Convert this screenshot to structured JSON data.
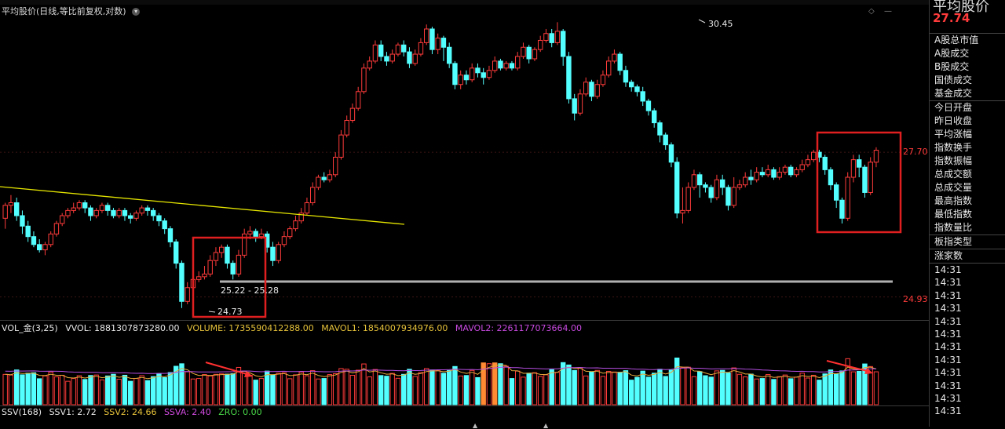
{
  "header": {
    "chart_title": "平均股价(日线,等比前复权,对数)",
    "info_icon": "chevron-down-icon"
  },
  "price_axis": {
    "label_top": "27.70",
    "label_bottom": "24.93",
    "color": "#ff3b3b"
  },
  "annotations": {
    "high": "30.45",
    "low": "24.73",
    "range": "25.22 - 25.28"
  },
  "volume_legend": {
    "name": "VOL_金(3,25)",
    "vvol": "VVOL: 1881307873280.00",
    "volume": "VOLUME: 1735590412288.00",
    "mavol1": "MAVOL1: 1854007934976.00",
    "mavol2": "MAVOL2: 2261177073664.00"
  },
  "ssv_legend": {
    "name": "SSV(168)",
    "ssv1": "SSV1: 2.72",
    "ssv2": "SSV2: 24.66",
    "ssva": "SSVA: 2.40",
    "zro": "ZRO: 0.00"
  },
  "colors": {
    "up": "#ff3b3b",
    "down": "#54ffff",
    "trendline": "#e6e600",
    "support": "#b0b0b0",
    "highlight_box": "#e02020",
    "volume_orange": "#ff8a33",
    "mavol1": "#e6a93a",
    "mavol2": "#b44ee0",
    "vvol": "#dddddd",
    "volume_text": "#e6c23a",
    "ssv2": "#e6c23a",
    "ssva": "#d14ae0",
    "zro": "#49d949"
  },
  "right_panel": {
    "title": "平均股价",
    "price": "27.74",
    "items": [
      "A股总市值",
      "A股成交",
      "B股成交",
      "国债成交",
      "基金成交",
      "今日开盘",
      "昨日收盘",
      "平均涨幅",
      "指数换手",
      "指数振幅",
      "总成交额",
      "总成交量",
      "最高指数",
      "最低指数",
      "指数量比",
      "板指类型",
      "涨家数"
    ],
    "times": [
      "14:31",
      "14:31",
      "14:31",
      "14:31",
      "14:31",
      "14:31",
      "14:31",
      "14:31",
      "14:31",
      "14:31",
      "14:31",
      "14:31"
    ]
  },
  "chart_data": {
    "type": "candlestick",
    "scale": "log",
    "ylim": [
      24.6,
      30.7
    ],
    "labels": {
      "high": 30.45,
      "low": 24.73,
      "range_low": 25.22,
      "range_high": 25.28,
      "axis_top": 27.7,
      "axis_bottom": 24.93
    },
    "candles": [
      [
        26.4,
        26.65,
        26.7,
        26.2
      ],
      [
        26.65,
        26.7,
        26.85,
        26.5
      ],
      [
        26.7,
        26.45,
        26.8,
        26.35
      ],
      [
        26.45,
        26.25,
        26.55,
        26.1
      ],
      [
        26.25,
        26.05,
        26.35,
        25.95
      ],
      [
        26.05,
        25.9,
        26.15,
        25.85
      ],
      [
        25.9,
        25.8,
        26.0,
        25.75
      ],
      [
        25.8,
        25.9,
        25.95,
        25.7
      ],
      [
        25.9,
        26.1,
        26.15,
        25.85
      ],
      [
        26.1,
        26.3,
        26.35,
        26.05
      ],
      [
        26.3,
        26.45,
        26.5,
        26.25
      ],
      [
        26.45,
        26.55,
        26.6,
        26.4
      ],
      [
        26.55,
        26.6,
        26.7,
        26.5
      ],
      [
        26.6,
        26.7,
        26.75,
        26.55
      ],
      [
        26.7,
        26.6,
        26.75,
        26.5
      ],
      [
        26.6,
        26.45,
        26.65,
        26.35
      ],
      [
        26.45,
        26.55,
        26.6,
        26.4
      ],
      [
        26.55,
        26.65,
        26.7,
        26.5
      ],
      [
        26.65,
        26.55,
        26.7,
        26.45
      ],
      [
        26.55,
        26.45,
        26.6,
        26.4
      ],
      [
        26.45,
        26.55,
        26.6,
        26.4
      ],
      [
        26.55,
        26.45,
        26.6,
        26.35
      ],
      [
        26.45,
        26.4,
        26.5,
        26.3
      ],
      [
        26.4,
        26.5,
        26.55,
        26.35
      ],
      [
        26.5,
        26.6,
        26.65,
        26.45
      ],
      [
        26.6,
        26.55,
        26.65,
        26.45
      ],
      [
        26.55,
        26.45,
        26.6,
        26.35
      ],
      [
        26.45,
        26.35,
        26.5,
        26.25
      ],
      [
        26.35,
        26.2,
        26.4,
        26.1
      ],
      [
        26.2,
        25.95,
        26.25,
        25.85
      ],
      [
        25.95,
        25.55,
        26.0,
        25.45
      ],
      [
        25.55,
        24.85,
        25.6,
        24.73
      ],
      [
        24.85,
        25.1,
        25.2,
        24.8
      ],
      [
        25.1,
        25.25,
        25.35,
        25.05
      ],
      [
        25.25,
        25.3,
        25.4,
        25.2
      ],
      [
        25.3,
        25.35,
        25.5,
        25.25
      ],
      [
        25.35,
        25.6,
        25.7,
        25.3
      ],
      [
        25.6,
        25.75,
        25.85,
        25.5
      ],
      [
        25.75,
        25.85,
        25.9,
        25.65
      ],
      [
        25.85,
        25.55,
        25.9,
        25.45
      ],
      [
        25.55,
        25.35,
        25.6,
        25.25
      ],
      [
        25.35,
        25.7,
        25.8,
        25.3
      ],
      [
        25.7,
        26.1,
        26.2,
        25.65
      ],
      [
        26.1,
        26.15,
        26.25,
        26.0
      ],
      [
        26.15,
        26.05,
        26.2,
        25.95
      ],
      [
        26.05,
        26.1,
        26.2,
        26.0
      ],
      [
        26.1,
        25.85,
        26.15,
        25.75
      ],
      [
        25.85,
        25.6,
        25.95,
        25.5
      ],
      [
        25.6,
        25.9,
        25.95,
        25.55
      ],
      [
        25.9,
        26.05,
        26.15,
        25.85
      ],
      [
        26.05,
        26.2,
        26.25,
        26.0
      ],
      [
        26.2,
        26.35,
        26.45,
        26.15
      ],
      [
        26.35,
        26.5,
        26.6,
        26.3
      ],
      [
        26.5,
        26.7,
        26.8,
        26.45
      ],
      [
        26.7,
        27.0,
        27.1,
        26.65
      ],
      [
        27.0,
        27.2,
        27.25,
        26.95
      ],
      [
        27.2,
        27.15,
        27.3,
        27.1
      ],
      [
        27.15,
        27.25,
        27.35,
        27.1
      ],
      [
        27.25,
        27.6,
        27.7,
        27.2
      ],
      [
        27.6,
        28.05,
        28.15,
        27.55
      ],
      [
        28.05,
        28.35,
        28.45,
        28.0
      ],
      [
        28.35,
        28.6,
        28.7,
        28.3
      ],
      [
        28.6,
        28.95,
        29.05,
        28.55
      ],
      [
        28.95,
        29.45,
        29.55,
        28.9
      ],
      [
        29.45,
        29.6,
        29.7,
        29.4
      ],
      [
        29.6,
        29.95,
        30.05,
        29.55
      ],
      [
        29.95,
        29.7,
        30.05,
        29.6
      ],
      [
        29.7,
        29.6,
        29.8,
        29.5
      ],
      [
        29.6,
        29.75,
        29.85,
        29.55
      ],
      [
        29.75,
        29.95,
        30.0,
        29.7
      ],
      [
        29.95,
        29.8,
        30.05,
        29.7
      ],
      [
        29.8,
        29.55,
        29.9,
        29.45
      ],
      [
        29.55,
        29.75,
        29.85,
        29.5
      ],
      [
        29.75,
        30.0,
        30.1,
        29.7
      ],
      [
        30.0,
        30.3,
        30.4,
        29.95
      ],
      [
        30.3,
        29.85,
        30.35,
        29.75
      ],
      [
        29.85,
        30.1,
        30.2,
        29.75
      ],
      [
        30.1,
        29.9,
        30.15,
        29.6
      ],
      [
        29.9,
        29.55,
        30.0,
        29.45
      ],
      [
        29.55,
        29.1,
        29.6,
        29.0
      ],
      [
        29.1,
        29.3,
        29.4,
        29.0
      ],
      [
        29.3,
        29.2,
        29.4,
        29.1
      ],
      [
        29.2,
        29.45,
        29.55,
        29.15
      ],
      [
        29.45,
        29.35,
        29.55,
        29.25
      ],
      [
        29.35,
        29.25,
        29.45,
        29.1
      ],
      [
        29.25,
        29.4,
        29.5,
        29.2
      ],
      [
        29.4,
        29.6,
        29.7,
        29.35
      ],
      [
        29.6,
        29.45,
        29.65,
        29.4
      ],
      [
        29.45,
        29.55,
        29.6,
        29.4
      ],
      [
        29.55,
        29.45,
        29.6,
        29.4
      ],
      [
        29.45,
        29.7,
        29.8,
        29.4
      ],
      [
        29.7,
        29.9,
        30.0,
        29.65
      ],
      [
        29.9,
        29.65,
        29.95,
        29.55
      ],
      [
        29.65,
        29.85,
        29.9,
        29.6
      ],
      [
        29.85,
        30.05,
        30.15,
        29.8
      ],
      [
        30.05,
        30.2,
        30.3,
        30.0
      ],
      [
        30.2,
        30.0,
        30.3,
        29.9
      ],
      [
        30.0,
        30.25,
        30.45,
        29.95
      ],
      [
        30.25,
        29.7,
        30.3,
        29.5
      ],
      [
        29.7,
        28.8,
        29.8,
        28.7
      ],
      [
        28.8,
        28.5,
        28.9,
        28.35
      ],
      [
        28.5,
        28.9,
        29.0,
        28.45
      ],
      [
        28.9,
        29.15,
        29.25,
        28.85
      ],
      [
        29.15,
        28.85,
        29.2,
        28.75
      ],
      [
        28.85,
        29.1,
        29.2,
        28.8
      ],
      [
        29.1,
        29.3,
        29.4,
        29.05
      ],
      [
        29.3,
        29.6,
        29.7,
        29.25
      ],
      [
        29.6,
        29.75,
        29.85,
        29.55
      ],
      [
        29.75,
        29.4,
        29.8,
        29.3
      ],
      [
        29.4,
        29.15,
        29.5,
        29.05
      ],
      [
        29.15,
        29.05,
        29.2,
        28.95
      ],
      [
        29.05,
        28.95,
        29.1,
        28.85
      ],
      [
        28.95,
        28.75,
        29.05,
        28.65
      ],
      [
        28.75,
        28.55,
        28.8,
        28.45
      ],
      [
        28.55,
        28.3,
        28.6,
        28.2
      ],
      [
        28.3,
        28.05,
        28.35,
        27.9
      ],
      [
        28.05,
        27.85,
        28.1,
        27.75
      ],
      [
        27.85,
        27.5,
        27.9,
        27.4
      ],
      [
        27.5,
        26.5,
        27.6,
        26.4
      ],
      [
        26.5,
        26.55,
        27.0,
        26.3
      ],
      [
        26.55,
        27.0,
        27.1,
        26.5
      ],
      [
        27.0,
        27.25,
        27.35,
        26.95
      ],
      [
        27.25,
        27.05,
        27.3,
        26.8
      ],
      [
        27.05,
        27.0,
        27.1,
        26.9
      ],
      [
        27.0,
        26.8,
        27.05,
        26.7
      ],
      [
        26.8,
        27.15,
        27.25,
        26.75
      ],
      [
        27.15,
        27.0,
        27.25,
        26.85
      ],
      [
        27.0,
        26.65,
        27.05,
        26.55
      ],
      [
        26.65,
        27.0,
        27.2,
        26.6
      ],
      [
        27.0,
        27.05,
        27.15,
        26.95
      ],
      [
        27.05,
        27.2,
        27.3,
        27.0
      ],
      [
        27.2,
        27.15,
        27.35,
        27.05
      ],
      [
        27.15,
        27.3,
        27.4,
        27.1
      ],
      [
        27.3,
        27.25,
        27.4,
        27.2
      ],
      [
        27.25,
        27.35,
        27.45,
        27.2
      ],
      [
        27.35,
        27.2,
        27.4,
        27.15
      ],
      [
        27.2,
        27.3,
        27.4,
        27.15
      ],
      [
        27.3,
        27.4,
        27.45,
        27.25
      ],
      [
        27.4,
        27.25,
        27.45,
        27.2
      ],
      [
        27.25,
        27.35,
        27.4,
        27.2
      ],
      [
        27.35,
        27.45,
        27.55,
        27.3
      ],
      [
        27.45,
        27.55,
        27.65,
        27.4
      ],
      [
        27.55,
        27.7,
        27.75,
        27.5
      ],
      [
        27.7,
        27.6,
        27.75,
        27.5
      ],
      [
        27.6,
        27.35,
        27.65,
        27.25
      ],
      [
        27.35,
        27.05,
        27.4,
        26.95
      ],
      [
        27.05,
        26.75,
        27.1,
        26.6
      ],
      [
        26.75,
        26.4,
        26.8,
        26.3
      ],
      [
        26.4,
        27.2,
        27.3,
        26.35
      ],
      [
        27.2,
        27.55,
        27.65,
        27.1
      ],
      [
        27.55,
        27.4,
        27.65,
        27.2
      ],
      [
        27.4,
        26.9,
        27.45,
        26.8
      ],
      [
        26.9,
        27.5,
        27.6,
        26.85
      ],
      [
        27.5,
        27.74,
        27.8,
        27.4
      ]
    ]
  }
}
